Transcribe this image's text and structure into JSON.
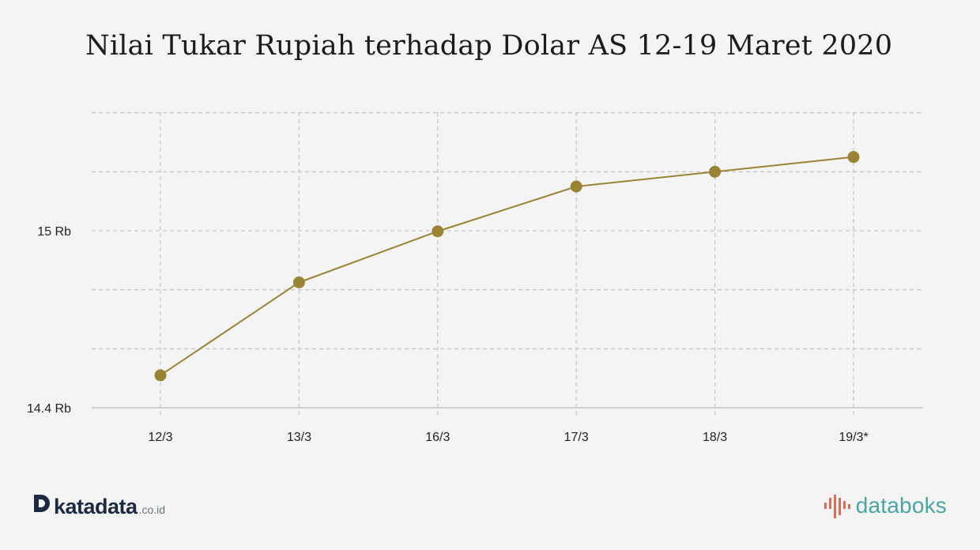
{
  "title": "Nilai Tukar Rupiah terhadap Dolar AS 12-19 Maret 2020",
  "footer": {
    "left_brand": "katadata",
    "left_domain": ".co.id",
    "right_brand": "databoks"
  },
  "colors": {
    "series": "#9a8434",
    "grid": "#c8c8c8",
    "axis": "#cfcfcf",
    "background": "#f4f4f4",
    "text": "#222222",
    "katadata": "#1c2a44",
    "databoks": "#4aa6a2",
    "databoks_mark": "#e06c55"
  },
  "icons": {
    "katadata_logo": "katadata-logo-icon",
    "databoks_logo": "databoks-logo-icon"
  },
  "chart_data": {
    "type": "line",
    "title": "Nilai Tukar Rupiah terhadap Dolar AS 12-19 Maret 2020",
    "xlabel": "",
    "ylabel": "",
    "categories": [
      "12/3",
      "13/3",
      "16/3",
      "17/3",
      "18/3",
      "19/3*"
    ],
    "series": [
      {
        "values": [
          14510,
          14825,
          14998,
          15150,
          15200,
          15250
        ]
      }
    ],
    "ylim": [
      14400,
      15420
    ],
    "yticks": [
      14400,
      15000
    ],
    "ytick_labels": [
      "14.4 Rb",
      "15 Rb"
    ],
    "grid_y": [
      14600,
      14800,
      15000,
      15200,
      15400
    ],
    "grid": true,
    "legend": "none"
  }
}
